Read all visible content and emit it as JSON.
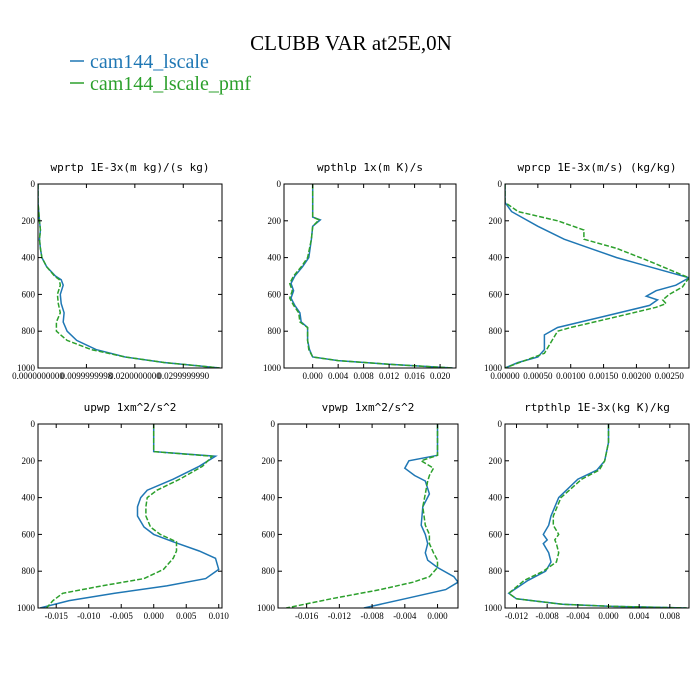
{
  "figure_title": "CLUBB VAR at25E,0N",
  "legend": [
    {
      "label": "cam144_lscale",
      "color": "#1f77b4"
    },
    {
      "label": "cam144_lscale_pmf",
      "color": "#2ca02c"
    }
  ],
  "chart_data": [
    {
      "type": "line",
      "title": "wprtp  1E-3x(m kg)/(s kg)",
      "xlim": [
        0,
        0.038
      ],
      "ylim": [
        0,
        1000
      ],
      "y_inverted": true,
      "xticks": [
        0.0,
        0.01,
        0.02,
        0.03
      ],
      "xtick_labels": [
        "0.0000000000",
        "0.0099999998",
        "0.0200000000",
        "0.0299999990"
      ],
      "yticks": [
        0,
        200,
        400,
        600,
        800,
        1000
      ],
      "ytick_labels": [
        "0",
        "200",
        "400",
        "600",
        "800",
        "1000"
      ],
      "series": [
        {
          "name": "cam144_lscale",
          "color": "#1f77b4",
          "dashed": false,
          "x": [
            0.0,
            0.0,
            0.0003,
            0.0005,
            0.0003,
            0.0005,
            0.0008,
            0.0018,
            0.0036,
            0.0048,
            0.0052,
            0.0046,
            0.0048,
            0.0054,
            0.0052,
            0.006,
            0.008,
            0.012,
            0.018,
            0.026,
            0.034,
            0.0375
          ],
          "y": [
            0,
            100,
            200,
            250,
            300,
            350,
            400,
            450,
            500,
            520,
            550,
            600,
            650,
            700,
            750,
            800,
            850,
            900,
            940,
            970,
            990,
            1000
          ]
        },
        {
          "name": "cam144_lscale_pmf",
          "color": "#2ca02c",
          "dashed": true,
          "x": [
            0.0,
            0.0,
            0.0003,
            0.0005,
            0.0003,
            0.0005,
            0.0008,
            0.0018,
            0.0034,
            0.0044,
            0.0046,
            0.004,
            0.0042,
            0.0046,
            0.0038,
            0.0038,
            0.006,
            0.011,
            0.018,
            0.026,
            0.034,
            0.0375
          ],
          "y": [
            0,
            100,
            200,
            250,
            300,
            350,
            400,
            450,
            500,
            520,
            550,
            600,
            650,
            700,
            750,
            800,
            850,
            900,
            940,
            970,
            990,
            1000
          ]
        }
      ]
    },
    {
      "type": "line",
      "title": "wpthlp  1x(m K)/s",
      "xlim": [
        -0.0045,
        0.0225
      ],
      "ylim": [
        0,
        1000
      ],
      "y_inverted": true,
      "xticks": [
        0.0,
        0.004,
        0.008,
        0.012,
        0.016,
        0.02
      ],
      "xtick_labels": [
        "0.000",
        "0.004",
        "0.008",
        "0.012",
        "0.016",
        "0.020"
      ],
      "yticks": [
        0,
        200,
        400,
        600,
        800,
        1000
      ],
      "ytick_labels": [
        "0",
        "200",
        "400",
        "600",
        "800",
        "1000"
      ],
      "series": [
        {
          "name": "cam144_lscale",
          "color": "#1f77b4",
          "dashed": false,
          "x": [
            0.0,
            0.0,
            0.0,
            0.0012,
            0.0,
            -0.0002,
            -0.0006,
            -0.0016,
            -0.0028,
            -0.0034,
            -0.003,
            -0.0034,
            -0.0028,
            -0.002,
            -0.0018,
            -0.0008,
            -0.0008,
            -0.0005,
            0.0,
            0.004,
            0.012,
            0.022
          ],
          "y": [
            0,
            100,
            180,
            195,
            230,
            300,
            400,
            450,
            500,
            540,
            580,
            620,
            660,
            700,
            750,
            780,
            850,
            900,
            940,
            960,
            980,
            1000
          ]
        },
        {
          "name": "cam144_lscale_pmf",
          "color": "#2ca02c",
          "dashed": true,
          "x": [
            0.0,
            0.0,
            0.0,
            0.001,
            0.0,
            -0.0002,
            -0.0008,
            -0.0018,
            -0.003,
            -0.0036,
            -0.0032,
            -0.0036,
            -0.003,
            -0.0022,
            -0.002,
            -0.0008,
            -0.0008,
            -0.0006,
            0.0,
            0.004,
            0.012,
            0.022
          ],
          "y": [
            0,
            100,
            180,
            195,
            230,
            300,
            400,
            450,
            500,
            540,
            580,
            620,
            660,
            700,
            750,
            780,
            850,
            900,
            940,
            960,
            980,
            1000
          ]
        }
      ]
    },
    {
      "type": "line",
      "title": "wprcp  1E-3x(m/s) (kg/kg)",
      "xlim": [
        0.0,
        0.0028
      ],
      "ylim": [
        0,
        1000
      ],
      "y_inverted": true,
      "xticks": [
        0.0,
        0.0005,
        0.001,
        0.0015,
        0.002,
        0.0025
      ],
      "xtick_labels": [
        "0.00000",
        "0.00050",
        "0.00100",
        "0.00150",
        "0.00200",
        "0.00250"
      ],
      "yticks": [
        0,
        200,
        400,
        600,
        800,
        1000
      ],
      "ytick_labels": [
        "0",
        "200",
        "400",
        "600",
        "800",
        "1000"
      ],
      "series": [
        {
          "name": "cam144_lscale",
          "color": "#1f77b4",
          "dashed": false,
          "x": [
            0.0,
            0.0,
            0.0001,
            0.0005,
            0.0009,
            0.0013,
            0.0017,
            0.0022,
            0.0028,
            0.0026,
            0.0023,
            0.00215,
            0.00232,
            0.0022,
            0.0015,
            0.0008,
            0.0006,
            0.0006,
            0.0005,
            0.0002,
            0.0
          ],
          "y": [
            0,
            100,
            150,
            230,
            300,
            350,
            400,
            450,
            510,
            550,
            580,
            610,
            630,
            660,
            720,
            780,
            820,
            900,
            940,
            970,
            1000
          ]
        },
        {
          "name": "cam144_lscale_pmf",
          "color": "#2ca02c",
          "dashed": true,
          "x": [
            0.0,
            0.0,
            0.0002,
            0.0008,
            0.0012,
            0.0012,
            0.0017,
            0.0022,
            0.0028,
            0.0027,
            0.0025,
            0.0024,
            0.00245,
            0.0023,
            0.0016,
            0.001,
            0.0008,
            0.0007,
            0.0006,
            0.0003,
            0.0
          ],
          "y": [
            0,
            100,
            150,
            200,
            250,
            300,
            350,
            420,
            510,
            560,
            600,
            630,
            650,
            670,
            730,
            780,
            800,
            860,
            920,
            960,
            1000
          ]
        }
      ]
    },
    {
      "type": "line",
      "title": "upwp  1xm^2/s^2",
      "xlim": [
        -0.0178,
        0.0105
      ],
      "ylim": [
        0,
        1000
      ],
      "y_inverted": true,
      "xticks": [
        -0.015,
        -0.01,
        -0.005,
        0.0,
        0.005,
        0.01
      ],
      "xtick_labels": [
        "-0.015",
        "-0.010",
        "-0.005",
        "0.000",
        "0.005",
        "0.010"
      ],
      "yticks": [
        0,
        200,
        400,
        600,
        800,
        1000
      ],
      "ytick_labels": [
        "0",
        "200",
        "400",
        "600",
        "800",
        "1000"
      ],
      "series": [
        {
          "name": "cam144_lscale",
          "color": "#1f77b4",
          "dashed": false,
          "x": [
            0.0,
            0.0,
            0.0,
            0.0095,
            0.007,
            0.003,
            -0.001,
            -0.002,
            -0.0025,
            -0.0025,
            -0.0015,
            0.0,
            0.003,
            0.007,
            0.0095,
            0.01,
            0.008,
            0.002,
            -0.006,
            -0.013,
            -0.0175
          ],
          "y": [
            0,
            100,
            150,
            175,
            230,
            300,
            360,
            400,
            450,
            500,
            560,
            600,
            640,
            690,
            730,
            790,
            840,
            880,
            920,
            960,
            1000
          ]
        },
        {
          "name": "cam144_lscale_pmf",
          "color": "#2ca02c",
          "dashed": true,
          "x": [
            0.0,
            0.0,
            0.0,
            0.009,
            0.0075,
            0.004,
            0.0005,
            -0.001,
            -0.0012,
            -0.0012,
            -0.0005,
            0.001,
            0.0035,
            0.0035,
            0.003,
            0.0015,
            -0.0015,
            -0.008,
            -0.014,
            -0.0155,
            -0.0165
          ],
          "y": [
            0,
            100,
            150,
            175,
            230,
            300,
            360,
            400,
            450,
            500,
            560,
            600,
            640,
            690,
            730,
            790,
            840,
            880,
            920,
            960,
            1000
          ]
        }
      ]
    },
    {
      "type": "line",
      "title": "vpwp  1xm^2/s^2",
      "xlim": [
        -0.0195,
        0.0025
      ],
      "ylim": [
        0,
        1000
      ],
      "y_inverted": true,
      "xticks": [
        -0.016,
        -0.012,
        -0.008,
        -0.004,
        0.0
      ],
      "xtick_labels": [
        "-0.016",
        "-0.012",
        "-0.008",
        "-0.004",
        "0.000"
      ],
      "yticks": [
        0,
        200,
        400,
        600,
        800,
        1000
      ],
      "ytick_labels": [
        "0",
        "200",
        "400",
        "600",
        "800",
        "1000"
      ],
      "series": [
        {
          "name": "cam144_lscale",
          "color": "#1f77b4",
          "dashed": false,
          "x": [
            0.0,
            0.0,
            0.0,
            -0.0035,
            -0.004,
            -0.0028,
            -0.0015,
            -0.001,
            -0.0018,
            -0.002,
            -0.0015,
            -0.0012,
            -0.0015,
            -0.0012,
            0.0,
            0.002,
            0.0025,
            0.001,
            -0.004,
            -0.009
          ],
          "y": [
            0,
            100,
            170,
            200,
            240,
            280,
            310,
            380,
            450,
            550,
            600,
            650,
            700,
            740,
            780,
            830,
            860,
            900,
            950,
            1000
          ]
        },
        {
          "name": "cam144_lscale_pmf",
          "color": "#2ca02c",
          "dashed": true,
          "x": [
            0.0,
            0.0,
            0.0,
            -0.002,
            -0.0005,
            -0.001,
            -0.0012,
            -0.0015,
            -0.0018,
            -0.0015,
            -0.001,
            -0.001,
            -0.0005,
            0.0,
            0.0,
            -0.001,
            -0.003,
            -0.007,
            -0.013,
            -0.0185
          ],
          "y": [
            0,
            100,
            170,
            200,
            240,
            280,
            310,
            380,
            450,
            550,
            600,
            650,
            700,
            740,
            780,
            830,
            860,
            900,
            950,
            1000
          ]
        }
      ]
    },
    {
      "type": "line",
      "title": "rtpthlp  1E-3x(kg K)/kg",
      "xlim": [
        -0.0135,
        0.0105
      ],
      "ylim": [
        0,
        1000
      ],
      "y_inverted": true,
      "xticks": [
        -0.012,
        -0.008,
        -0.004,
        0.0,
        0.004,
        0.008
      ],
      "xtick_labels": [
        "-0.012",
        "-0.008",
        "-0.004",
        "0.000",
        "0.004",
        "0.008"
      ],
      "yticks": [
        0,
        200,
        400,
        600,
        800,
        1000
      ],
      "ytick_labels": [
        "0",
        "200",
        "400",
        "600",
        "800",
        "1000"
      ],
      "series": [
        {
          "name": "cam144_lscale",
          "color": "#1f77b4",
          "dashed": false,
          "x": [
            0.0,
            0.0,
            -0.0005,
            -0.0015,
            -0.004,
            -0.0065,
            -0.0075,
            -0.0078,
            -0.0085,
            -0.008,
            -0.0085,
            -0.0078,
            -0.0075,
            -0.0082,
            -0.0105,
            -0.013,
            -0.012,
            -0.006,
            0.0,
            0.0102
          ],
          "y": [
            0,
            100,
            200,
            250,
            300,
            400,
            500,
            550,
            600,
            630,
            650,
            700,
            750,
            800,
            850,
            920,
            950,
            980,
            990,
            1000
          ]
        },
        {
          "name": "cam144_lscale_pmf",
          "color": "#2ca02c",
          "dashed": true,
          "x": [
            0.0,
            0.0,
            -0.0005,
            -0.0012,
            -0.0035,
            -0.0062,
            -0.0072,
            -0.0072,
            -0.0065,
            -0.007,
            -0.0068,
            -0.0065,
            -0.0068,
            -0.0085,
            -0.011,
            -0.013,
            -0.012,
            -0.006,
            0.0,
            0.0102
          ],
          "y": [
            0,
            100,
            200,
            250,
            300,
            400,
            500,
            550,
            600,
            630,
            650,
            700,
            750,
            800,
            850,
            920,
            950,
            980,
            990,
            1000
          ]
        }
      ]
    }
  ]
}
